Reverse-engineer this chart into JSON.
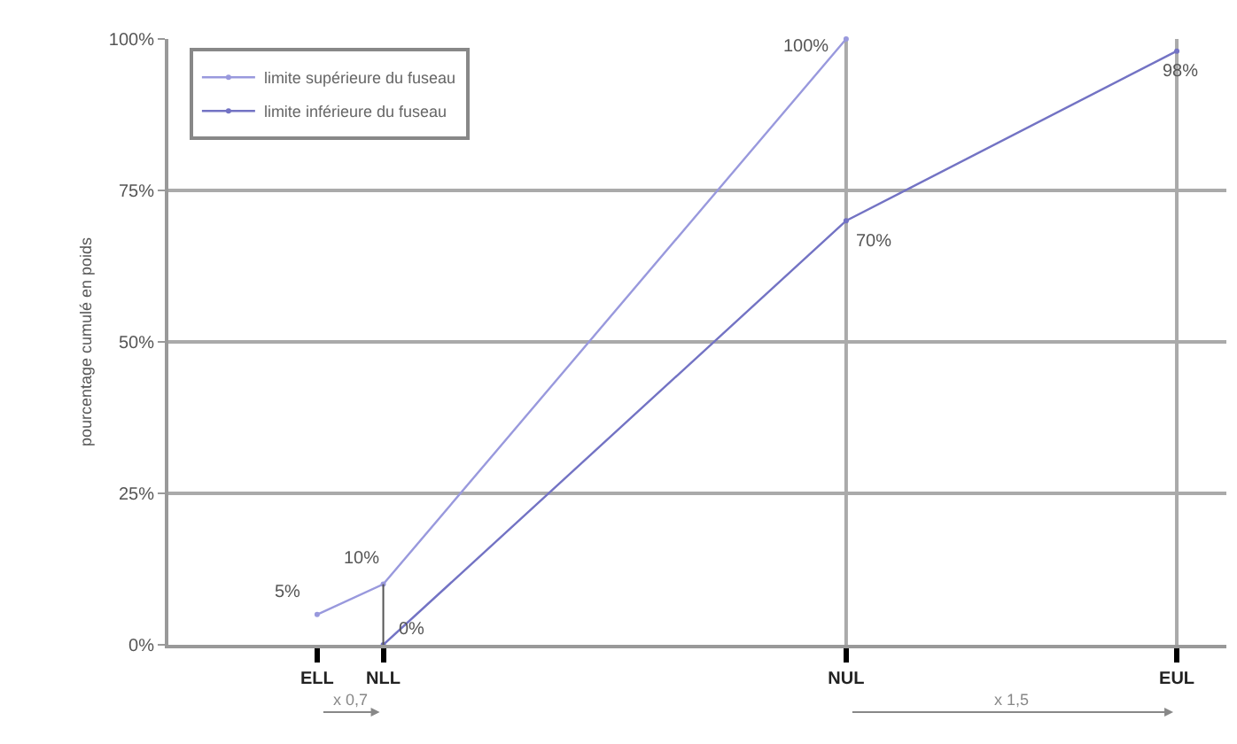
{
  "chart_data": {
    "type": "line",
    "ylabel": "pourcentage cumulé en poids",
    "categories": [
      null,
      null,
      null,
      null,
      "ELL",
      null,
      "NLL",
      null,
      null,
      null,
      null,
      null,
      null,
      null,
      null,
      null,
      null,
      null,
      null,
      null,
      "NUL",
      null,
      null,
      null,
      null,
      null,
      null,
      null,
      null,
      null,
      "EUL",
      null
    ],
    "ylim": [
      0,
      100
    ],
    "yticks": [
      {
        "value": 0,
        "label": "0%"
      },
      {
        "value": 25,
        "label": "25%"
      },
      {
        "value": 50,
        "label": "50%"
      },
      {
        "value": 75,
        "label": "75%"
      },
      {
        "value": 100,
        "label": "100%"
      }
    ],
    "series": [
      {
        "name": "limite supérieure du fuseau",
        "color": "#9999dd",
        "values": [
          null,
          null,
          null,
          null,
          5,
          null,
          10,
          null,
          null,
          null,
          null,
          null,
          null,
          null,
          null,
          null,
          null,
          null,
          null,
          null,
          100,
          null,
          null,
          null,
          null,
          null,
          null,
          null,
          null,
          null,
          null,
          null
        ],
        "value_labels": [
          null,
          null,
          null,
          null,
          "5%",
          null,
          "10%",
          null,
          null,
          null,
          null,
          null,
          null,
          null,
          null,
          null,
          null,
          null,
          null,
          null,
          "100%",
          null,
          null,
          null,
          null,
          null,
          null,
          null,
          null,
          null,
          null,
          null
        ]
      },
      {
        "name": "limite inférieure du fuseau",
        "color": "#7373c4",
        "values": [
          null,
          null,
          null,
          null,
          null,
          null,
          0,
          null,
          null,
          null,
          null,
          null,
          null,
          null,
          null,
          null,
          null,
          null,
          null,
          null,
          70,
          null,
          null,
          null,
          null,
          null,
          null,
          null,
          null,
          null,
          98,
          null
        ],
        "value_labels": [
          null,
          null,
          null,
          null,
          null,
          null,
          "0%",
          null,
          null,
          null,
          null,
          null,
          null,
          null,
          null,
          null,
          null,
          null,
          null,
          null,
          "70%",
          null,
          null,
          null,
          null,
          null,
          null,
          null,
          null,
          null,
          "98%",
          null
        ]
      }
    ],
    "ref_lines": [
      {
        "axis": "x",
        "value": "NUL",
        "color": "#aaaaaa"
      },
      {
        "axis": "x",
        "value": "EUL",
        "color": "#aaaaaa"
      }
    ],
    "annotations": [
      "x 0,7",
      "x 1,5"
    ],
    "grid": "y",
    "legend": "top left",
    "marker": "circle",
    "line_style": "solid"
  }
}
